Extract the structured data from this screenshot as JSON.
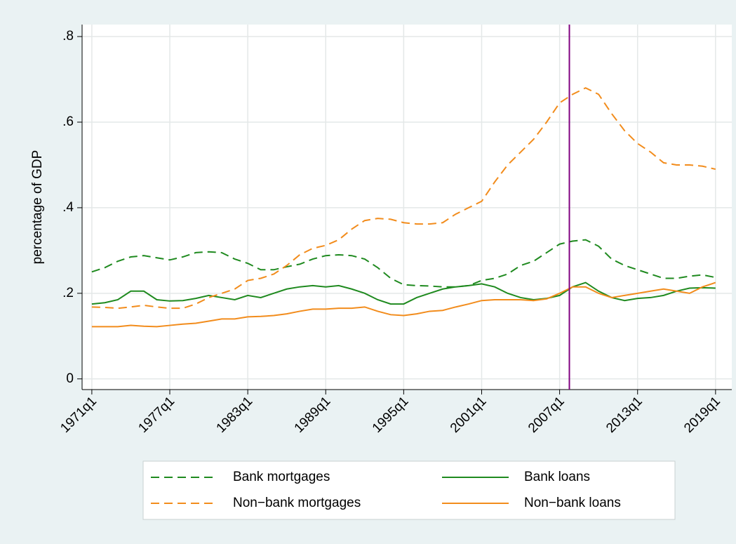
{
  "chart_data": {
    "type": "line",
    "y_label": "percentage of GDP",
    "x": [
      "1971q1",
      "1972q1",
      "1973q1",
      "1974q1",
      "1975q1",
      "1976q1",
      "1977q1",
      "1978q1",
      "1979q1",
      "1980q1",
      "1981q1",
      "1982q1",
      "1983q1",
      "1984q1",
      "1985q1",
      "1986q1",
      "1987q1",
      "1988q1",
      "1989q1",
      "1990q1",
      "1991q1",
      "1992q1",
      "1993q1",
      "1994q1",
      "1995q1",
      "1996q1",
      "1997q1",
      "1998q1",
      "1999q1",
      "2000q1",
      "2001q1",
      "2002q1",
      "2003q1",
      "2004q1",
      "2005q1",
      "2006q1",
      "2007q1",
      "2008q1",
      "2009q1",
      "2010q1",
      "2011q1",
      "2012q1",
      "2013q1",
      "2014q1",
      "2015q1",
      "2016q1",
      "2017q1",
      "2018q1",
      "2019q1"
    ],
    "series": [
      {
        "name": "Bank mortgages",
        "color": "#1f8a1f",
        "dashed": true,
        "values": [
          0.25,
          0.26,
          0.275,
          0.285,
          0.288,
          0.283,
          0.278,
          0.285,
          0.295,
          0.297,
          0.295,
          0.28,
          0.27,
          0.255,
          0.255,
          0.262,
          0.268,
          0.28,
          0.288,
          0.29,
          0.288,
          0.28,
          0.26,
          0.235,
          0.22,
          0.218,
          0.217,
          0.215,
          0.215,
          0.218,
          0.23,
          0.235,
          0.245,
          0.265,
          0.275,
          0.295,
          0.315,
          0.322,
          0.325,
          0.31,
          0.28,
          0.265,
          0.255,
          0.245,
          0.235,
          0.235,
          0.24,
          0.243,
          0.237
        ]
      },
      {
        "name": "Bank loans",
        "color": "#1f8a1f",
        "dashed": false,
        "values": [
          0.175,
          0.178,
          0.185,
          0.205,
          0.205,
          0.185,
          0.182,
          0.183,
          0.188,
          0.195,
          0.19,
          0.185,
          0.195,
          0.19,
          0.2,
          0.21,
          0.215,
          0.218,
          0.215,
          0.218,
          0.21,
          0.2,
          0.185,
          0.175,
          0.175,
          0.19,
          0.2,
          0.21,
          0.215,
          0.218,
          0.222,
          0.215,
          0.2,
          0.19,
          0.185,
          0.188,
          0.195,
          0.215,
          0.225,
          0.205,
          0.19,
          0.183,
          0.188,
          0.19,
          0.195,
          0.205,
          0.212,
          0.213,
          0.212
        ]
      },
      {
        "name": "Non−bank mortgages",
        "color": "#f28c1c",
        "dashed": true,
        "values": [
          0.168,
          0.167,
          0.165,
          0.168,
          0.172,
          0.168,
          0.165,
          0.165,
          0.175,
          0.19,
          0.2,
          0.21,
          0.23,
          0.235,
          0.245,
          0.265,
          0.29,
          0.305,
          0.312,
          0.325,
          0.35,
          0.37,
          0.375,
          0.373,
          0.365,
          0.362,
          0.362,
          0.365,
          0.385,
          0.4,
          0.415,
          0.46,
          0.5,
          0.53,
          0.56,
          0.6,
          0.645,
          0.665,
          0.68,
          0.665,
          0.62,
          0.58,
          0.55,
          0.53,
          0.505,
          0.5,
          0.5,
          0.497,
          0.49
        ]
      },
      {
        "name": "Non−bank loans",
        "color": "#f28c1c",
        "dashed": false,
        "values": [
          0.122,
          0.122,
          0.122,
          0.125,
          0.123,
          0.122,
          0.125,
          0.128,
          0.13,
          0.135,
          0.14,
          0.14,
          0.145,
          0.146,
          0.148,
          0.152,
          0.158,
          0.163,
          0.163,
          0.165,
          0.165,
          0.168,
          0.158,
          0.15,
          0.148,
          0.152,
          0.158,
          0.16,
          0.168,
          0.175,
          0.183,
          0.185,
          0.185,
          0.185,
          0.183,
          0.187,
          0.2,
          0.215,
          0.215,
          0.2,
          0.19,
          0.195,
          0.2,
          0.205,
          0.21,
          0.205,
          0.2,
          0.215,
          0.225
        ]
      }
    ],
    "vline": {
      "x": "2007q4",
      "color": "#800080"
    },
    "xlim": [
      "1970q2",
      "2020q2"
    ],
    "xticks": [
      "1971q1",
      "1977q1",
      "1983q1",
      "1989q1",
      "1995q1",
      "2001q1",
      "2007q1",
      "2013q1",
      "2019q1"
    ],
    "ylim": [
      -0.025,
      0.828
    ],
    "yticks": [
      {
        "value": 0,
        "label": "0"
      },
      {
        "value": 0.2,
        "label": ".2"
      },
      {
        "value": 0.4,
        "label": ".4"
      },
      {
        "value": 0.6,
        "label": ".6"
      },
      {
        "value": 0.8,
        "label": ".8"
      }
    ],
    "grid": true,
    "legend": "bottom"
  }
}
